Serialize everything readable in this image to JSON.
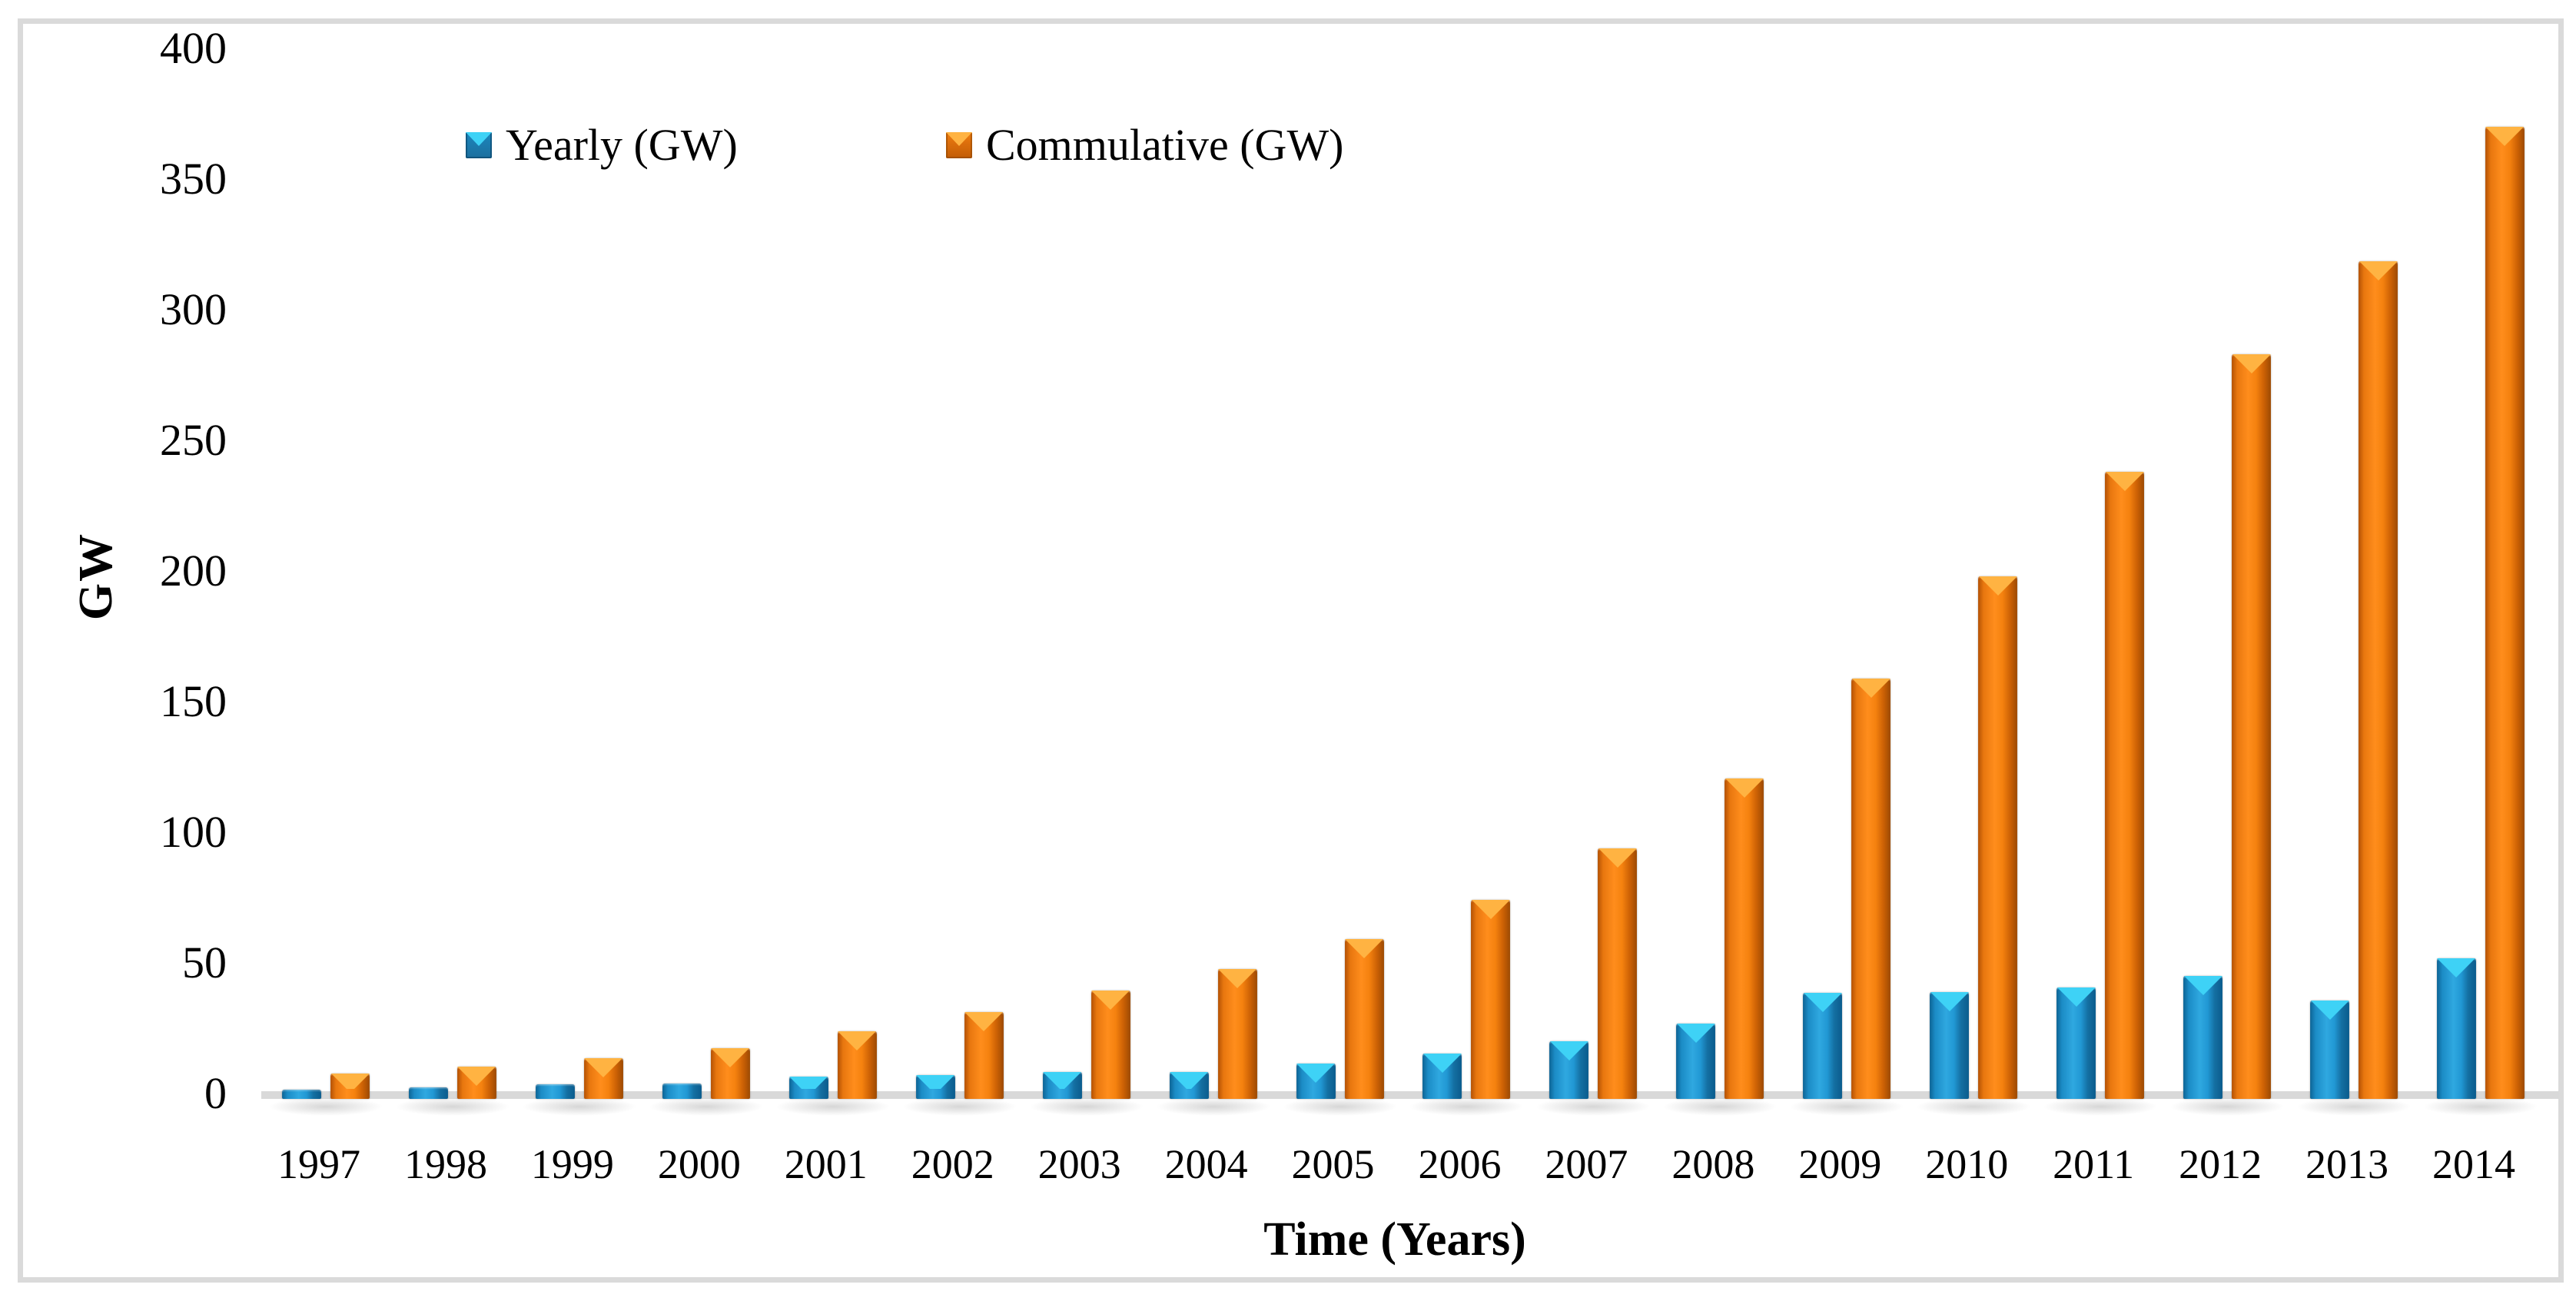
{
  "chart_data": {
    "type": "bar",
    "title": "",
    "xlabel": "Time (Years)",
    "ylabel": "GW",
    "ylim": [
      0,
      400
    ],
    "ytick_step": 50,
    "yticks": [
      0,
      50,
      100,
      150,
      200,
      250,
      300,
      350,
      400
    ],
    "grid": false,
    "legend_position": "top-left inside plot area",
    "bar_style": "3d-beveled-columns",
    "categories": [
      "1997",
      "1998",
      "1999",
      "2000",
      "2001",
      "2002",
      "2003",
      "2004",
      "2005",
      "2006",
      "2007",
      "2008",
      "2009",
      "2010",
      "2011",
      "2012",
      "2013",
      "2014"
    ],
    "series": [
      {
        "name": "Yearly (GW)",
        "color": "#2198D4",
        "highlight_color": "#3ED2F6",
        "values": [
          1.5,
          2.5,
          3.4,
          3.8,
          6.5,
          7.2,
          8.1,
          8.2,
          11.5,
          15.2,
          19.9,
          26.9,
          38.5,
          38.8,
          40.6,
          45.0,
          35.7,
          51.7
        ]
      },
      {
        "name": "Commulative (GW)",
        "color": "#F5820F",
        "highlight_color": "#FFB342",
        "values": [
          7.6,
          10.2,
          13.6,
          17.4,
          23.9,
          31.1,
          39.4,
          47.6,
          59.1,
          74.0,
          93.9,
          120.7,
          158.9,
          197.9,
          238.0,
          282.8,
          318.6,
          369.9
        ]
      }
    ]
  },
  "colors": {
    "background": "#FFFFFF",
    "frame_border": "#DADADA",
    "axis_floor": "#D9D9D9",
    "text": "#000000"
  }
}
